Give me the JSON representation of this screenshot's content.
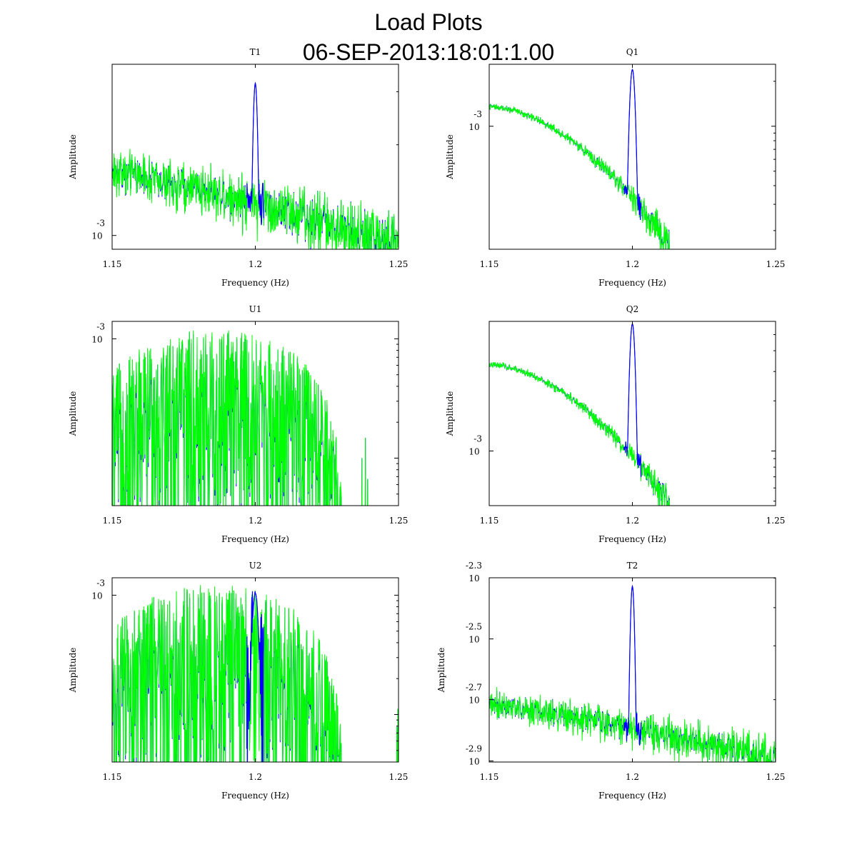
{
  "figure": {
    "title": "Load Plots",
    "subtitle": "06-SEP-2013:18:01:1.00"
  },
  "colors": {
    "series_a": "#0000ff",
    "series_b": "#00ff00",
    "axes": "#000000"
  },
  "chart_data": [
    {
      "type": "line",
      "title": "T1",
      "xlabel": "Frequency (Hz)",
      "ylabel": "Amplitude",
      "xlim": [
        1.15,
        1.25
      ],
      "xticks": [
        1.15,
        1.2,
        1.25
      ],
      "xtick_labels": [
        "1.15",
        "1.2",
        "1.25"
      ],
      "ylim": [
        0.0009,
        0.0037
      ],
      "ylog": true,
      "yticks": [
        {
          "value": 0.001,
          "base": "10",
          "exp": "-3"
        }
      ],
      "noise": {
        "shape": "decline",
        "start": 0.00165,
        "end": 0.00093,
        "spread": 0.00035
      },
      "peak": {
        "x": 1.2,
        "height": 0.0032,
        "series": "blue"
      }
    },
    {
      "type": "line",
      "title": "Q1",
      "xlabel": "Frequency (Hz)",
      "ylabel": "Amplitude",
      "xlim": [
        1.15,
        1.25
      ],
      "xticks": [
        1.15,
        1.2,
        1.25
      ],
      "xtick_labels": [
        "1.15",
        "1.2",
        "1.25"
      ],
      "ylim": [
        0.00015,
        0.0026
      ],
      "ylog": true,
      "yticks": [
        {
          "value": 0.001,
          "base": "10",
          "exp": "-3"
        }
      ],
      "noise": {
        "shape": "rolloff",
        "start": 0.00135,
        "end": 0.00016,
        "knee": 1.213,
        "spread": 8e-05
      },
      "peak": {
        "x": 1.2,
        "height": 0.0024,
        "series": "blue"
      }
    },
    {
      "type": "line",
      "title": "U1",
      "xlabel": "Frequency (Hz)",
      "ylabel": "Amplitude",
      "xlim": [
        1.15,
        1.25
      ],
      "xticks": [
        1.15,
        1.2,
        1.25
      ],
      "xtick_labels": [
        "1.15",
        "1.2",
        "1.25"
      ],
      "ylim": [
        4e-05,
        0.0014
      ],
      "ylog": true,
      "yticks": [
        {
          "value": 0.001,
          "base": "10",
          "exp": "-3"
        }
      ],
      "noise": {
        "shape": "hump",
        "center": 1.185,
        "top": 0.00115,
        "edge": 1.23,
        "spread": 0.0006
      },
      "peak": null
    },
    {
      "type": "line",
      "title": "Q2",
      "xlabel": "Frequency (Hz)",
      "ylabel": "Amplitude",
      "xlim": [
        1.15,
        1.25
      ],
      "xticks": [
        1.15,
        1.2,
        1.25
      ],
      "xtick_labels": [
        "1.15",
        "1.2",
        "1.25"
      ],
      "ylim": [
        0.00047,
        0.006
      ],
      "ylog": true,
      "yticks": [
        {
          "value": 0.001,
          "base": "10",
          "exp": "-3"
        }
      ],
      "noise": {
        "shape": "rolloff",
        "start": 0.0033,
        "end": 0.00048,
        "knee": 1.213,
        "spread": 0.00018
      },
      "peak": {
        "x": 1.2,
        "height": 0.0058,
        "series": "blue"
      }
    },
    {
      "type": "line",
      "title": "U2",
      "xlabel": "Frequency (Hz)",
      "ylabel": "Amplitude",
      "xlim": [
        1.15,
        1.25
      ],
      "xticks": [
        1.15,
        1.2,
        1.25
      ],
      "xtick_labels": [
        "1.15",
        "1.2",
        "1.25"
      ],
      "ylim": [
        4e-05,
        0.0014
      ],
      "ylog": true,
      "yticks": [
        {
          "value": 0.001,
          "base": "10",
          "exp": "-3"
        }
      ],
      "noise": {
        "shape": "hump",
        "center": 1.185,
        "top": 0.00115,
        "edge": 1.23,
        "spread": 0.0006
      },
      "peak": {
        "x": 1.2,
        "height": 0.00104,
        "series": "blue"
      }
    },
    {
      "type": "line",
      "title": "T2",
      "xlabel": "Frequency (Hz)",
      "ylabel": "Amplitude",
      "xlim": [
        1.15,
        1.25
      ],
      "xticks": [
        1.15,
        1.2,
        1.25
      ],
      "xtick_labels": [
        "1.15",
        "1.2",
        "1.25"
      ],
      "ylim": [
        0.00125,
        0.00501
      ],
      "ylog": true,
      "yticks": [
        {
          "value": 0.00501,
          "base": "10",
          "exp": "-2.3"
        },
        {
          "value": 0.00316,
          "base": "10",
          "exp": "-2.5"
        },
        {
          "value": 0.002,
          "base": "10",
          "exp": "-2.7"
        },
        {
          "value": 0.00126,
          "base": "10",
          "exp": "-2.9"
        }
      ],
      "noise": {
        "shape": "decline",
        "start": 0.00195,
        "end": 0.00128,
        "spread": 0.00028
      },
      "peak": {
        "x": 1.2,
        "height": 0.0047,
        "series": "blue"
      }
    }
  ]
}
